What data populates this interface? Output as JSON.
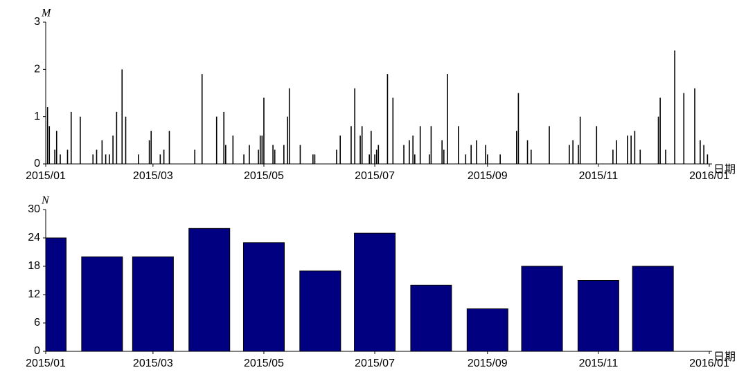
{
  "chart_data": [
    {
      "type": "stem",
      "ylabel": "M",
      "xlabel": "日期",
      "color": "#000000",
      "x": [
        1,
        2,
        5,
        6,
        8,
        12,
        14,
        19,
        26,
        28,
        31,
        33,
        35,
        37,
        39,
        42,
        44,
        51,
        57,
        58,
        63,
        65,
        68,
        82,
        86,
        94,
        98,
        99,
        103,
        109,
        112,
        117,
        118,
        119,
        120,
        125,
        126,
        131,
        133,
        134,
        140,
        147,
        148,
        160,
        162,
        168,
        170,
        173,
        174,
        178,
        179,
        181,
        182,
        183,
        188,
        191,
        197,
        200,
        202,
        203,
        206,
        211,
        212,
        218,
        219,
        221,
        227,
        231,
        234,
        237,
        242,
        243,
        250,
        259,
        260,
        265,
        267,
        277,
        288,
        290,
        293,
        294,
        303,
        312,
        314,
        320,
        322,
        324,
        327,
        337,
        338,
        341,
        346,
        351,
        357,
        360,
        362,
        364
      ],
      "values": [
        1.2,
        0.8,
        0.3,
        0.7,
        0.2,
        0.3,
        1.1,
        1.0,
        0.2,
        0.3,
        0.5,
        0.2,
        0.2,
        0.6,
        1.1,
        2.0,
        1.0,
        0.2,
        0.5,
        0.7,
        0.2,
        0.3,
        0.7,
        0.3,
        1.9,
        1.0,
        1.1,
        0.4,
        0.6,
        0.2,
        0.4,
        0.3,
        0.6,
        0.6,
        1.4,
        0.4,
        0.3,
        0.4,
        1.0,
        1.6,
        0.4,
        0.2,
        0.2,
        0.3,
        0.6,
        0.8,
        1.6,
        0.6,
        0.8,
        0.2,
        0.7,
        0.2,
        0.3,
        0.4,
        1.9,
        1.4,
        0.4,
        0.5,
        0.6,
        0.2,
        0.8,
        0.2,
        0.8,
        0.5,
        0.3,
        1.9,
        0.8,
        0.2,
        0.4,
        0.5,
        0.4,
        0.2,
        0.2,
        0.7,
        1.5,
        0.5,
        0.3,
        0.8,
        0.4,
        0.5,
        0.4,
        1.0,
        0.8,
        0.3,
        0.5,
        0.6,
        0.6,
        0.7,
        0.3,
        1.0,
        1.4,
        0.3,
        2.4,
        1.5,
        1.6,
        0.5,
        0.4,
        0.2
      ],
      "xlim": [
        0,
        365
      ],
      "xticks": [
        {
          "value": 0,
          "label": "2015/01"
        },
        {
          "value": 59,
          "label": "2015/03"
        },
        {
          "value": 120,
          "label": "2015/05"
        },
        {
          "value": 181,
          "label": "2015/07"
        },
        {
          "value": 243,
          "label": "2015/09"
        },
        {
          "value": 304,
          "label": "2015/11"
        },
        {
          "value": 365,
          "label": "2016/01"
        }
      ],
      "ylim": [
        0,
        3
      ],
      "yticks": [
        0,
        1,
        2,
        3
      ]
    },
    {
      "type": "bar",
      "ylabel": "N",
      "xlabel": "日期",
      "color": "#000080",
      "x": [
        0,
        31,
        59,
        90,
        120,
        151,
        181,
        212,
        243,
        273,
        304,
        334
      ],
      "values": [
        24,
        20,
        20,
        26,
        23,
        17,
        25,
        14,
        9,
        18,
        15,
        18
      ],
      "xlim": [
        0,
        365
      ],
      "xticks": [
        {
          "value": 0,
          "label": "2015/01"
        },
        {
          "value": 59,
          "label": "2015/03"
        },
        {
          "value": 120,
          "label": "2015/05"
        },
        {
          "value": 181,
          "label": "2015/07"
        },
        {
          "value": 243,
          "label": "2015/09"
        },
        {
          "value": 304,
          "label": "2015/11"
        },
        {
          "value": 365,
          "label": "2016/01"
        }
      ],
      "ylim": [
        0,
        30
      ],
      "yticks": [
        0,
        6,
        12,
        18,
        24,
        30
      ]
    }
  ]
}
